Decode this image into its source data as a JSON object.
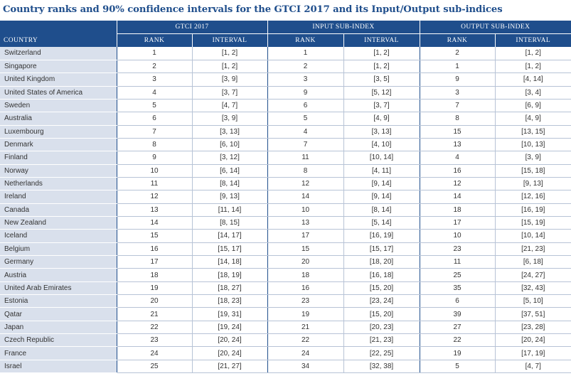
{
  "title": "Country ranks and 90% confidence intervals for the GTCI 2017 and its Input/Output sub-indices",
  "header": {
    "country": "COUNTRY",
    "groups": [
      "GTCI 2017",
      "INPUT SUB-INDEX",
      "OUTPUT SUB-INDEX"
    ],
    "rank": "RANK",
    "interval": "INTERVAL"
  },
  "rows": [
    {
      "country": "Switzerland",
      "gtci_rank": "1",
      "gtci_interval": "[1, 2]",
      "input_rank": "1",
      "input_interval": "[1, 2]",
      "output_rank": "2",
      "output_interval": "[1, 2]"
    },
    {
      "country": "Singapore",
      "gtci_rank": "2",
      "gtci_interval": "[1, 2]",
      "input_rank": "2",
      "input_interval": "[1, 2]",
      "output_rank": "1",
      "output_interval": "[1, 2]"
    },
    {
      "country": "United Kingdom",
      "gtci_rank": "3",
      "gtci_interval": "[3, 9]",
      "input_rank": "3",
      "input_interval": "[3, 5]",
      "output_rank": "9",
      "output_interval": "[4, 14]"
    },
    {
      "country": "United States of America",
      "gtci_rank": "4",
      "gtci_interval": "[3, 7]",
      "input_rank": "9",
      "input_interval": "[5, 12]",
      "output_rank": "3",
      "output_interval": "[3, 4]"
    },
    {
      "country": "Sweden",
      "gtci_rank": "5",
      "gtci_interval": "[4, 7]",
      "input_rank": "6",
      "input_interval": "[3, 7]",
      "output_rank": "7",
      "output_interval": "[6, 9]"
    },
    {
      "country": "Australia",
      "gtci_rank": "6",
      "gtci_interval": "[3, 9]",
      "input_rank": "5",
      "input_interval": "[4, 9]",
      "output_rank": "8",
      "output_interval": "[4, 9]"
    },
    {
      "country": "Luxembourg",
      "gtci_rank": "7",
      "gtci_interval": "[3, 13]",
      "input_rank": "4",
      "input_interval": "[3, 13]",
      "output_rank": "15",
      "output_interval": "[13, 15]"
    },
    {
      "country": "Denmark",
      "gtci_rank": "8",
      "gtci_interval": "[6, 10]",
      "input_rank": "7",
      "input_interval": "[4, 10]",
      "output_rank": "13",
      "output_interval": "[10, 13]"
    },
    {
      "country": "Finland",
      "gtci_rank": "9",
      "gtci_interval": "[3, 12]",
      "input_rank": "11",
      "input_interval": "[10, 14]",
      "output_rank": "4",
      "output_interval": "[3, 9]"
    },
    {
      "country": "Norway",
      "gtci_rank": "10",
      "gtci_interval": "[6, 14]",
      "input_rank": "8",
      "input_interval": "[4, 11]",
      "output_rank": "16",
      "output_interval": "[15, 18]"
    },
    {
      "country": "Netherlands",
      "gtci_rank": "11",
      "gtci_interval": "[8, 14]",
      "input_rank": "12",
      "input_interval": "[9, 14]",
      "output_rank": "12",
      "output_interval": "[9, 13]"
    },
    {
      "country": "Ireland",
      "gtci_rank": "12",
      "gtci_interval": "[9, 13]",
      "input_rank": "14",
      "input_interval": "[9, 14]",
      "output_rank": "14",
      "output_interval": "[12, 16]"
    },
    {
      "country": "Canada",
      "gtci_rank": "13",
      "gtci_interval": "[11, 14]",
      "input_rank": "10",
      "input_interval": "[8, 14]",
      "output_rank": "18",
      "output_interval": "[16, 19]"
    },
    {
      "country": "New Zealand",
      "gtci_rank": "14",
      "gtci_interval": "[8, 15]",
      "input_rank": "13",
      "input_interval": "[5, 14]",
      "output_rank": "17",
      "output_interval": "[15, 19]"
    },
    {
      "country": "Iceland",
      "gtci_rank": "15",
      "gtci_interval": "[14, 17]",
      "input_rank": "17",
      "input_interval": "[16, 19]",
      "output_rank": "10",
      "output_interval": "[10, 14]"
    },
    {
      "country": "Belgium",
      "gtci_rank": "16",
      "gtci_interval": "[15, 17]",
      "input_rank": "15",
      "input_interval": "[15, 17]",
      "output_rank": "23",
      "output_interval": "[21, 23]"
    },
    {
      "country": "Germany",
      "gtci_rank": "17",
      "gtci_interval": "[14, 18]",
      "input_rank": "20",
      "input_interval": "[18, 20]",
      "output_rank": "11",
      "output_interval": "[6, 18]"
    },
    {
      "country": "Austria",
      "gtci_rank": "18",
      "gtci_interval": "[18, 19]",
      "input_rank": "18",
      "input_interval": "[16, 18]",
      "output_rank": "25",
      "output_interval": "[24, 27]"
    },
    {
      "country": "United Arab Emirates",
      "gtci_rank": "19",
      "gtci_interval": "[18, 27]",
      "input_rank": "16",
      "input_interval": "[15, 20]",
      "output_rank": "35",
      "output_interval": "[32, 43]"
    },
    {
      "country": "Estonia",
      "gtci_rank": "20",
      "gtci_interval": "[18, 23]",
      "input_rank": "23",
      "input_interval": "[23, 24]",
      "output_rank": "6",
      "output_interval": "[5, 10]"
    },
    {
      "country": "Qatar",
      "gtci_rank": "21",
      "gtci_interval": "[19, 31]",
      "input_rank": "19",
      "input_interval": "[15, 20]",
      "output_rank": "39",
      "output_interval": "[37, 51]"
    },
    {
      "country": "Japan",
      "gtci_rank": "22",
      "gtci_interval": "[19, 24]",
      "input_rank": "21",
      "input_interval": "[20, 23]",
      "output_rank": "27",
      "output_interval": "[23, 28]"
    },
    {
      "country": "Czech Republic",
      "gtci_rank": "23",
      "gtci_interval": "[20, 24]",
      "input_rank": "22",
      "input_interval": "[21, 23]",
      "output_rank": "22",
      "output_interval": "[20, 24]"
    },
    {
      "country": "France",
      "gtci_rank": "24",
      "gtci_interval": "[20, 24]",
      "input_rank": "24",
      "input_interval": "[22, 25]",
      "output_rank": "19",
      "output_interval": "[17, 19]"
    },
    {
      "country": "Israel",
      "gtci_rank": "25",
      "gtci_interval": "[21, 27]",
      "input_rank": "34",
      "input_interval": "[32, 38]",
      "output_rank": "5",
      "output_interval": "[4, 7]"
    }
  ],
  "colors": {
    "header_bg": "#1f4e8c",
    "title": "#1f4e8c",
    "country_col_bg": "#d9e0ec",
    "text": "#333333"
  }
}
